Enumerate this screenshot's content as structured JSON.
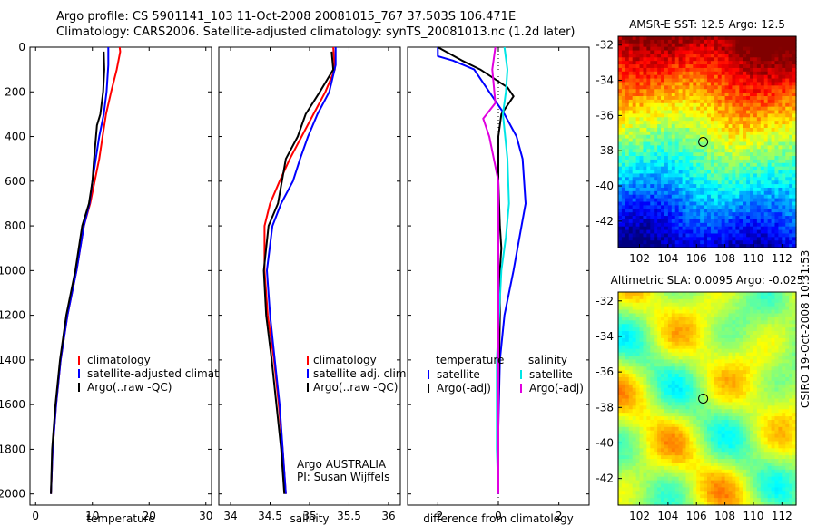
{
  "header": {
    "line1": "Argo profile: CS 5901141_103 11-Oct-2008 20081015_767 37.503S 106.471E",
    "line2": "Climatology: CARS2006. Satellite-adjusted climatology: synTS_20081013.nc (1.2d later)"
  },
  "stamp": "CSIRO 19-Oct-2008 10:31:53",
  "chart_data": [
    {
      "id": "temp",
      "type": "line",
      "xlabel": "temperature",
      "xlim": [
        -1,
        31
      ],
      "xticks": [
        0,
        10,
        20,
        30
      ],
      "ylim": [
        2050,
        0
      ],
      "yticks": [
        0,
        200,
        400,
        600,
        800,
        1000,
        1200,
        1400,
        1600,
        1800,
        2000
      ],
      "series": [
        {
          "name": "climatology",
          "color": "#ff0000",
          "x": [
            14.8,
            14.9,
            14.3,
            13.3,
            12.4,
            11.8,
            11.2,
            10.4,
            9.6,
            8.5,
            7.2,
            5.6,
            4.4,
            3.6,
            3.0,
            2.7
          ],
          "y": [
            0,
            20,
            100,
            200,
            300,
            400,
            500,
            600,
            700,
            800,
            1000,
            1200,
            1400,
            1600,
            1800,
            2000
          ]
        },
        {
          "name": "satellite-adjusted climatology",
          "color": "#0000ff",
          "x": [
            12.8,
            12.8,
            12.5,
            12.0,
            11.2,
            10.6,
            10.0,
            9.5,
            8.5,
            7.2,
            5.6,
            4.4,
            3.6,
            3.0,
            2.7
          ],
          "y": [
            0,
            80,
            200,
            300,
            400,
            500,
            600,
            700,
            800,
            1000,
            1200,
            1400,
            1600,
            1800,
            2000
          ]
        },
        {
          "name": "Argo(..raw -QC)",
          "color": "#000000",
          "x": [
            12.0,
            12.1,
            11.9,
            11.4,
            10.8,
            10.3,
            10.0,
            9.4,
            8.2,
            7.0,
            5.4,
            4.3,
            3.5,
            2.9,
            2.7
          ],
          "y": [
            20,
            100,
            200,
            300,
            350,
            500,
            600,
            700,
            800,
            1000,
            1200,
            1400,
            1600,
            1800,
            2000
          ]
        }
      ],
      "legend": [
        "climatology",
        "satellite-adjusted climatology",
        "Argo(..raw -QC)"
      ]
    },
    {
      "id": "sal",
      "type": "line",
      "xlabel": "salinity",
      "xlim": [
        33.85,
        36.15
      ],
      "xticks": [
        34,
        34.5,
        35,
        35.5,
        36
      ],
      "xticklabels": [
        "34",
        "34.5",
        "35",
        "35.5",
        "36"
      ],
      "ylim": [
        2050,
        0
      ],
      "yticks": [
        0,
        200,
        400,
        600,
        800,
        1000,
        1200,
        1400,
        1600,
        1800,
        2000
      ],
      "series": [
        {
          "name": "climatology",
          "color": "#ff0000",
          "x": [
            35.3,
            35.32,
            35.2,
            35.05,
            34.9,
            34.75,
            34.62,
            34.5,
            34.43,
            34.43,
            34.47,
            34.55,
            34.61,
            34.66,
            34.7
          ],
          "y": [
            0,
            100,
            200,
            300,
            400,
            500,
            600,
            700,
            800,
            1000,
            1200,
            1400,
            1600,
            1800,
            2000
          ]
        },
        {
          "name": "satellite adj. clim.",
          "color": "#0000ff",
          "x": [
            35.33,
            35.33,
            35.25,
            35.1,
            34.98,
            34.88,
            34.79,
            34.64,
            34.53,
            34.46,
            34.5,
            34.56,
            34.62,
            34.66,
            34.7
          ],
          "y": [
            0,
            80,
            200,
            300,
            400,
            500,
            600,
            700,
            800,
            1000,
            1200,
            1400,
            1600,
            1800,
            2000
          ]
        },
        {
          "name": "Argo(..raw -QC)",
          "color": "#000000",
          "x": [
            35.28,
            35.3,
            35.13,
            34.95,
            34.85,
            34.7,
            34.6,
            34.48,
            34.42,
            34.45,
            34.52,
            34.58,
            34.64,
            34.68
          ],
          "y": [
            20,
            100,
            200,
            300,
            400,
            500,
            700,
            800,
            1000,
            1200,
            1400,
            1600,
            1800,
            2000
          ]
        }
      ],
      "legend": [
        "climatology",
        "satellite adj. clim.",
        "Argo(..raw -QC)"
      ],
      "annotation": [
        "Argo AUSTRALIA",
        "PI: Susan Wijffels"
      ]
    },
    {
      "id": "diff",
      "type": "line",
      "xlabel": "difference from climatology",
      "xlim": [
        -3,
        3
      ],
      "xticks": [
        -2,
        0,
        2
      ],
      "ylim": [
        2050,
        0
      ],
      "yticks": [
        0,
        200,
        400,
        600,
        800,
        1000,
        1200,
        1400,
        1600,
        1800,
        2000
      ],
      "series": [
        {
          "name": "temperature satellite",
          "color": "#0000ff",
          "x": [
            -2.0,
            -2.0,
            -1.5,
            -0.8,
            -0.3,
            0.2,
            0.6,
            0.8,
            0.9,
            0.7,
            0.5,
            0.2,
            0.05,
            0.0,
            0.0
          ],
          "y": [
            0,
            40,
            60,
            100,
            200,
            300,
            400,
            500,
            700,
            850,
            1000,
            1200,
            1400,
            1700,
            2000
          ]
        },
        {
          "name": "temperature Argo(-adj)",
          "color": "#000000",
          "x": [
            -2.0,
            -1.2,
            -0.6,
            0.3,
            0.5,
            0.1,
            0.0,
            0.0,
            0.05,
            0.1,
            0.05,
            0.05,
            0.0,
            0.0
          ],
          "y": [
            0,
            60,
            100,
            180,
            220,
            300,
            400,
            600,
            800,
            900,
            1000,
            1200,
            1600,
            2000
          ]
        },
        {
          "name": "salinity satellite",
          "color": "#00e5e5",
          "x": [
            0.2,
            0.3,
            0.25,
            0.15,
            0.3,
            0.35,
            0.25,
            0.1,
            -0.05,
            -0.05,
            0.0
          ],
          "y": [
            0,
            100,
            200,
            300,
            500,
            700,
            850,
            1000,
            1400,
            1800,
            2000
          ]
        },
        {
          "name": "salinity Argo(-adj)",
          "color": "#e000e0",
          "x": [
            -0.1,
            -0.2,
            -0.1,
            -0.5,
            -0.3,
            0.0,
            0.0,
            0.0
          ],
          "y": [
            0,
            100,
            250,
            320,
            400,
            600,
            1000,
            2000
          ]
        }
      ],
      "legend": {
        "temperature": [
          "satellite",
          "Argo(-adj)"
        ],
        "salinity": [
          "satellite",
          "Argo(-adj)"
        ]
      },
      "legend_titles": [
        "temperature",
        "salinity"
      ]
    },
    {
      "id": "sst",
      "type": "heatmap",
      "title": "AMSR-E SST: 12.5  Argo: 12.5",
      "xlim": [
        100.5,
        113
      ],
      "ylim": [
        -43.5,
        -31.5
      ],
      "xticks": [
        102,
        104,
        106,
        108,
        110,
        112
      ],
      "yticks": [
        -32,
        -34,
        -36,
        -38,
        -40,
        -42
      ],
      "marker": {
        "lon": 106.47,
        "lat": -37.5
      }
    },
    {
      "id": "sla",
      "type": "heatmap",
      "title": "Altimetric SLA: 0.0095  Argo: -0.025",
      "xlim": [
        100.5,
        113
      ],
      "ylim": [
        -43.5,
        -31.5
      ],
      "xticks": [
        102,
        104,
        106,
        108,
        110,
        112
      ],
      "yticks": [
        -32,
        -34,
        -36,
        -38,
        -40,
        -42
      ],
      "marker": {
        "lon": 106.47,
        "lat": -37.5
      }
    }
  ]
}
